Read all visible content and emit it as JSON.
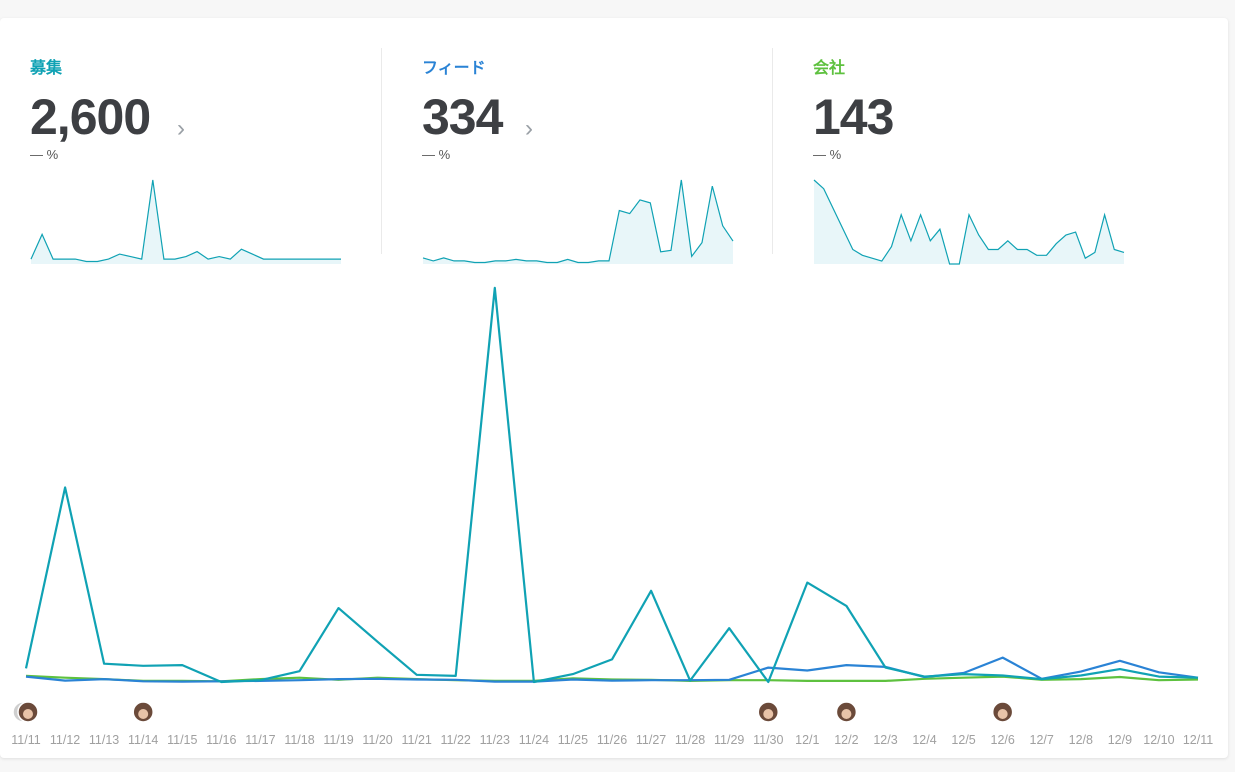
{
  "metrics": [
    {
      "label": "募集",
      "value": "2,600",
      "change": "― %",
      "color": "#10a2b4",
      "chevron": "›",
      "spark": [
        2,
        12,
        2,
        2,
        2,
        1,
        1,
        2,
        4,
        3,
        2,
        34,
        2,
        2,
        3,
        5,
        2,
        3,
        2,
        6,
        4,
        2,
        2,
        2,
        2,
        2,
        2,
        2,
        2
      ],
      "spark_max": 34
    },
    {
      "label": "フィード",
      "value": "334",
      "change": "― %",
      "color": "#2a83d5",
      "chevron": "›",
      "spark": [
        4,
        2,
        4,
        2,
        2,
        1,
        1,
        2,
        2,
        3,
        2,
        2,
        1,
        1,
        3,
        1,
        1,
        2,
        2,
        35,
        33,
        42,
        40,
        8,
        9,
        55,
        5,
        14,
        51,
        25,
        15
      ],
      "spark_max": 55
    },
    {
      "label": "会社",
      "value": "143",
      "change": "― %",
      "color": "#5ec13f",
      "chevron": "",
      "spark": [
        29,
        26,
        19,
        12,
        5,
        3,
        2,
        1,
        6,
        17,
        8,
        17,
        8,
        12,
        0,
        0,
        17,
        10,
        5,
        5,
        8,
        5,
        5,
        3,
        3,
        7,
        10,
        11,
        2,
        4,
        17,
        5,
        4
      ],
      "spark_max": 29
    }
  ],
  "chart_data": {
    "type": "line",
    "categories": [
      "11/11",
      "11/12",
      "11/13",
      "11/14",
      "11/15",
      "11/16",
      "11/17",
      "11/18",
      "11/19",
      "11/20",
      "11/21",
      "11/22",
      "11/23",
      "11/24",
      "11/25",
      "11/26",
      "11/27",
      "11/28",
      "11/29",
      "11/30",
      "12/1",
      "12/2",
      "12/3",
      "12/4",
      "12/5",
      "12/6",
      "12/7",
      "12/8",
      "12/9",
      "12/10",
      "12/11"
    ],
    "series": [
      {
        "name": "募集",
        "color": "#10a2b4",
        "values": [
          38,
          542,
          51,
          45,
          47,
          0,
          5,
          30,
          206,
          112,
          20,
          17,
          1098,
          0,
          22,
          63,
          254,
          4,
          150,
          0,
          277,
          212,
          40,
          15,
          22,
          18,
          8,
          18,
          36,
          15,
          12
        ]
      },
      {
        "name": "フィード",
        "color": "#2a83d5",
        "values": [
          15,
          4,
          8,
          2,
          1,
          2,
          3,
          5,
          8,
          9,
          7,
          6,
          1,
          1,
          7,
          4,
          5,
          5,
          6,
          40,
          32,
          47,
          42,
          14,
          25,
          68,
          9,
          29,
          59,
          27,
          12
        ]
      },
      {
        "name": "会社",
        "color": "#5ec13f",
        "values": [
          17,
          12,
          8,
          3,
          3,
          2,
          8,
          12,
          6,
          12,
          8,
          5,
          3,
          3,
          10,
          7,
          6,
          3,
          5,
          5,
          3,
          3,
          3,
          9,
          12,
          15,
          6,
          8,
          14,
          5,
          7
        ]
      }
    ],
    "ylim": [
      0,
      1120
    ],
    "grid": false
  },
  "avatars": [
    {
      "date": "11/11",
      "name": "user-avatar"
    },
    {
      "date": "11/11",
      "name": "user-avatar"
    },
    {
      "date": "11/14",
      "name": "user-avatar"
    },
    {
      "date": "11/30",
      "name": "user-avatar"
    },
    {
      "date": "12/2",
      "name": "user-avatar"
    },
    {
      "date": "12/6",
      "name": "user-avatar"
    }
  ]
}
